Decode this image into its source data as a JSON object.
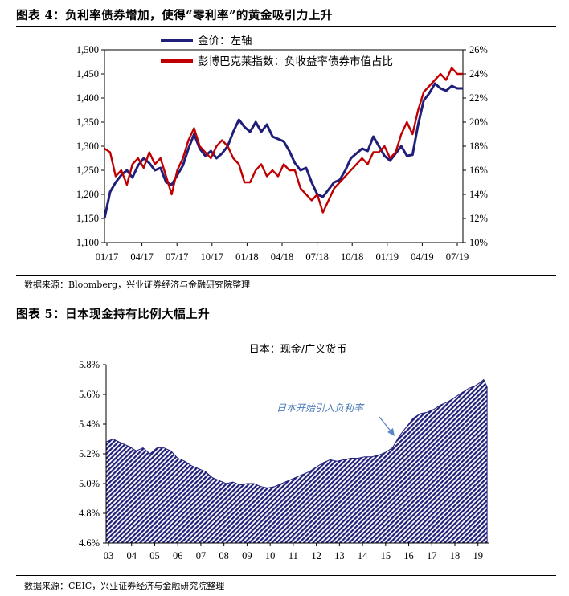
{
  "figure4": {
    "title": "图表 4：负利率债券增加，使得“零利率”的黄金吸引力上升",
    "source": "数据来源：Bloomberg，兴业证券经济与金融研究院整理"
  },
  "figure5": {
    "title": "图表 5：日本现金持有比例大幅上升",
    "source": "数据来源：CEIC，兴业证券经济与金融研究院整理"
  },
  "chart_data": [
    {
      "type": "line",
      "title": "",
      "x_ticks": [
        "01/17",
        "04/17",
        "07/17",
        "10/17",
        "01/18",
        "04/18",
        "07/18",
        "10/18",
        "01/19",
        "04/19",
        "07/19"
      ],
      "x_range": [
        0,
        32
      ],
      "y_left": {
        "range": [
          1100,
          1500
        ],
        "ticks": [
          "1,100",
          "1,150",
          "1,200",
          "1,250",
          "1,300",
          "1,350",
          "1,400",
          "1,450",
          "1,500"
        ]
      },
      "y_right": {
        "range": [
          10,
          26
        ],
        "ticks": [
          "10%",
          "12%",
          "14%",
          "16%",
          "18%",
          "20%",
          "22%",
          "24%",
          "26%"
        ]
      },
      "grid": false,
      "legend_position": "top-center",
      "series": [
        {
          "name": "金价：左轴",
          "axis": "left",
          "color": "#1f1f7a",
          "x": [
            0,
            0.5,
            1,
            1.5,
            2,
            2.5,
            3,
            3.5,
            4,
            4.5,
            5,
            5.5,
            6,
            6.5,
            7,
            7.5,
            8,
            8.5,
            9,
            9.5,
            10,
            10.5,
            11,
            11.5,
            12,
            12.5,
            13,
            13.5,
            14,
            14.5,
            15,
            15.5,
            16,
            16.5,
            17,
            17.5,
            18,
            18.5,
            19,
            19.5,
            20,
            20.5,
            21,
            21.5,
            22,
            22.5,
            23,
            23.5,
            24,
            24.5,
            25,
            25.5,
            26,
            26.5,
            27,
            27.5,
            28,
            28.5,
            29,
            29.5,
            30,
            30.5,
            31,
            31.5,
            32
          ],
          "y": [
            1150,
            1205,
            1225,
            1240,
            1250,
            1235,
            1260,
            1275,
            1265,
            1250,
            1255,
            1225,
            1220,
            1240,
            1260,
            1295,
            1325,
            1295,
            1280,
            1290,
            1275,
            1285,
            1300,
            1330,
            1355,
            1340,
            1330,
            1350,
            1330,
            1345,
            1320,
            1315,
            1310,
            1290,
            1265,
            1250,
            1255,
            1225,
            1200,
            1195,
            1210,
            1225,
            1230,
            1250,
            1275,
            1285,
            1295,
            1290,
            1320,
            1300,
            1280,
            1270,
            1285,
            1300,
            1280,
            1282,
            1345,
            1395,
            1410,
            1430,
            1420,
            1415,
            1425,
            1420,
            1420
          ]
        },
        {
          "name": "彭博巴克莱指数：负收益率债券市值占比",
          "axis": "right",
          "color": "#c00000",
          "x": [
            0,
            0.5,
            1,
            1.5,
            2,
            2.5,
            3,
            3.5,
            4,
            4.5,
            5,
            5.5,
            6,
            6.5,
            7,
            7.5,
            8,
            8.5,
            9,
            9.5,
            10,
            10.5,
            11,
            11.5,
            12,
            12.5,
            13,
            13.5,
            14,
            14.5,
            15,
            15.5,
            16,
            16.5,
            17,
            17.5,
            18,
            18.5,
            19,
            19.5,
            20,
            20.5,
            21,
            21.5,
            22,
            22.5,
            23,
            23.5,
            24,
            24.5,
            25,
            25.5,
            26,
            26.5,
            27,
            27.5,
            28,
            28.5,
            29,
            29.5,
            30,
            30.5,
            31,
            31.5,
            32
          ],
          "y": [
            17.8,
            17.5,
            15.5,
            16.0,
            14.8,
            16.5,
            17.0,
            16.2,
            17.5,
            16.5,
            17.0,
            15.5,
            14.0,
            16.0,
            17.0,
            18.5,
            19.5,
            18.0,
            17.5,
            17.0,
            18.0,
            18.5,
            18.0,
            17.0,
            16.5,
            15.0,
            15.0,
            16.0,
            16.5,
            15.5,
            16.0,
            15.5,
            16.5,
            16.0,
            16.0,
            14.5,
            14.0,
            13.5,
            14.0,
            12.5,
            13.5,
            14.5,
            15.0,
            15.5,
            16.0,
            16.5,
            17.0,
            16.5,
            17.5,
            17.5,
            18.0,
            17.0,
            17.5,
            19.0,
            20.0,
            19.0,
            21.0,
            22.5,
            23.0,
            23.5,
            24.0,
            23.5,
            24.5,
            24.0,
            24.0
          ]
        }
      ]
    },
    {
      "type": "area",
      "title": "日本：现金/广义货币",
      "x_ticks": [
        "03",
        "04",
        "05",
        "06",
        "07",
        "08",
        "09",
        "10",
        "11",
        "12",
        "13",
        "14",
        "15",
        "16",
        "17",
        "18",
        "19"
      ],
      "x_range": [
        2003,
        2019.6
      ],
      "y_range": [
        4.6,
        5.8
      ],
      "y_ticks": [
        "4.6%",
        "4.8%",
        "5.0%",
        "5.2%",
        "5.4%",
        "5.6%",
        "5.8%"
      ],
      "grid": false,
      "annotation": "日本开始引入负利率",
      "series": [
        {
          "name": "",
          "color": "#1f1f7a",
          "x": [
            2003.0,
            2003.3,
            2003.7,
            2004.0,
            2004.3,
            2004.6,
            2004.9,
            2005.2,
            2005.5,
            2005.8,
            2006.1,
            2006.4,
            2006.7,
            2007.0,
            2007.3,
            2007.6,
            2007.9,
            2008.2,
            2008.5,
            2008.8,
            2009.1,
            2009.4,
            2009.7,
            2010.0,
            2010.3,
            2010.6,
            2010.9,
            2011.2,
            2011.5,
            2011.8,
            2012.1,
            2012.4,
            2012.7,
            2013.0,
            2013.3,
            2013.6,
            2013.9,
            2014.2,
            2014.5,
            2014.8,
            2015.1,
            2015.4,
            2015.7,
            2016.0,
            2016.3,
            2016.6,
            2016.9,
            2017.2,
            2017.5,
            2017.8,
            2018.1,
            2018.4,
            2018.7,
            2019.0,
            2019.2,
            2019.35,
            2019.5
          ],
          "y": [
            5.28,
            5.3,
            5.27,
            5.25,
            5.22,
            5.24,
            5.2,
            5.24,
            5.24,
            5.22,
            5.17,
            5.15,
            5.12,
            5.1,
            5.08,
            5.04,
            5.02,
            5.0,
            5.01,
            4.99,
            5.0,
            5.0,
            4.98,
            4.97,
            4.98,
            5.0,
            5.02,
            5.04,
            5.06,
            5.08,
            5.11,
            5.14,
            5.16,
            5.15,
            5.16,
            5.17,
            5.17,
            5.18,
            5.18,
            5.19,
            5.21,
            5.24,
            5.32,
            5.38,
            5.44,
            5.47,
            5.48,
            5.5,
            5.53,
            5.55,
            5.58,
            5.61,
            5.64,
            5.66,
            5.68,
            5.7,
            5.65
          ]
        }
      ]
    }
  ]
}
